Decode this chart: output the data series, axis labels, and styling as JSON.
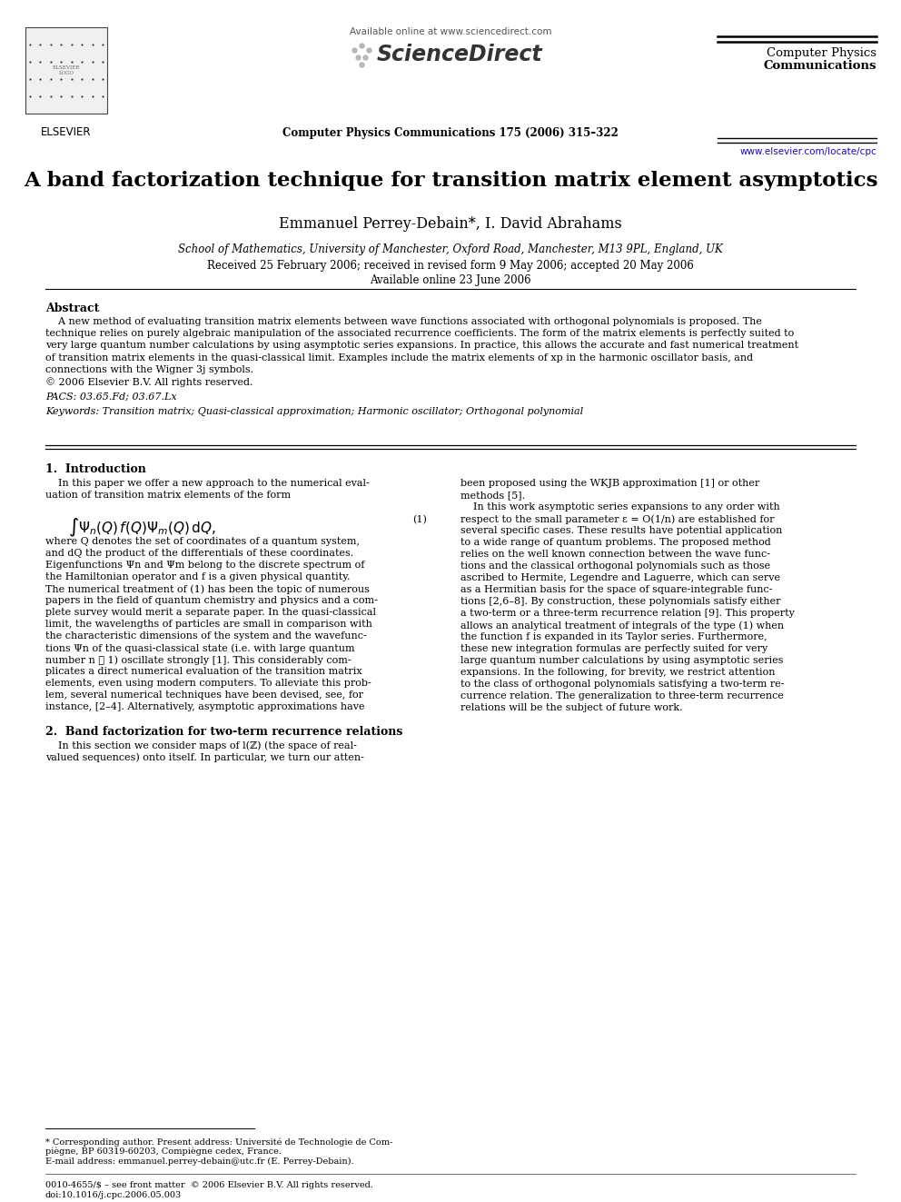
{
  "bg_color": "#ffffff",
  "title": "A band factorization technique for transition matrix element asymptotics",
  "authors": "Emmanuel Perrey-Debain*, I. David Abrahams",
  "affiliation": "School of Mathematics, University of Manchester, Oxford Road, Manchester, M13 9PL, England, UK",
  "received": "Received 25 February 2006; received in revised form 9 May 2006; accepted 20 May 2006",
  "available_online": "Available online 23 June 2006",
  "journal_header": "Computer Physics Communications 175 (2006) 315–322",
  "journal_name_line1": "Computer Physics",
  "journal_name_line2": "Communications",
  "sciencedirect_avail": "Available online at www.sciencedirect.com",
  "sciencedirect_logo": "ScienceDirect",
  "elsevier_text": "ELSEVIER",
  "url": "www.elsevier.com/locate/cpc",
  "abstract_title": "Abstract",
  "pacs": "PACS: 03.65.Fd; 03.67.Lx",
  "keywords": "Keywords: Transition matrix; Quasi-classical approximation; Harmonic oscillator; Orthogonal polynomial",
  "section1_title": "1.  Introduction",
  "section2_title": "2.  Band factorization for two-term recurrence relations",
  "integral_label": "(1)",
  "footnote_star1": "* Corresponding author. Present address: Université de Technologie de Com-",
  "footnote_star2": "piègne, BP 60319-60203, Compiègne cedex, France.",
  "footnote_star3": "E-mail address: emmanuel.perrey-debain@utc.fr (E. Perrey-Debain).",
  "footnote_bottom1": "0010-4655/$ – see front matter  © 2006 Elsevier B.V. All rights reserved.",
  "footnote_bottom2": "doi:10.1016/j.cpc.2006.05.003",
  "abstract_lines": [
    "    A new method of evaluating transition matrix elements between wave functions associated with orthogonal polynomials is proposed. The",
    "technique relies on purely algebraic manipulation of the associated recurrence coefficients. The form of the matrix elements is perfectly suited to",
    "very large quantum number calculations by using asymptotic series expansions. In practice, this allows the accurate and fast numerical treatment",
    "of transition matrix elements in the quasi-classical limit. Examples include the matrix elements of xp in the harmonic oscillator basis, and",
    "connections with the Wigner 3j symbols.",
    "© 2006 Elsevier B.V. All rights reserved."
  ],
  "left_col_intro": [
    "    In this paper we offer a new approach to the numerical eval-",
    "uation of transition matrix elements of the form"
  ],
  "left_col_body": [
    "where Q denotes the set of coordinates of a quantum system,",
    "and dQ the product of the differentials of these coordinates.",
    "Eigenfunctions Ψn and Ψm belong to the discrete spectrum of",
    "the Hamiltonian operator and f is a given physical quantity.",
    "The numerical treatment of (1) has been the topic of numerous",
    "papers in the field of quantum chemistry and physics and a com-",
    "plete survey would merit a separate paper. In the quasi-classical",
    "limit, the wavelengths of particles are small in comparison with",
    "the characteristic dimensions of the system and the wavefunc-",
    "tions Ψn of the quasi-classical state (i.e. with large quantum",
    "number n ≫ 1) oscillate strongly [1]. This considerably com-",
    "plicates a direct numerical evaluation of the transition matrix",
    "elements, even using modern computers. To alleviate this prob-",
    "lem, several numerical techniques have been devised, see, for",
    "instance, [2–4]. Alternatively, asymptotic approximations have"
  ],
  "right_col_body": [
    "been proposed using the WKJB approximation [1] or other",
    "methods [5].",
    "    In this work asymptotic series expansions to any order with",
    "respect to the small parameter ε = O(1/n) are established for",
    "several specific cases. These results have potential application",
    "to a wide range of quantum problems. The proposed method",
    "relies on the well known connection between the wave func-",
    "tions and the classical orthogonal polynomials such as those",
    "ascribed to Hermite, Legendre and Laguerre, which can serve",
    "as a Hermitian basis for the space of square-integrable func-",
    "tions [2,6–8]. By construction, these polynomials satisfy either",
    "a two-term or a three-term recurrence relation [9]. This property",
    "allows an analytical treatment of integrals of the type (1) when",
    "the function f is expanded in its Taylor series. Furthermore,",
    "these new integration formulas are perfectly suited for very",
    "large quantum number calculations by using asymptotic series",
    "expansions. In the following, for brevity, we restrict attention",
    "to the class of orthogonal polynomials satisfying a two-term re-",
    "currence relation. The generalization to three-term recurrence",
    "relations will be the subject of future work."
  ],
  "sec2_lines": [
    "    In this section we consider maps of l(ℤ) (the space of real-",
    "valued sequences) onto itself. In particular, we turn our atten-"
  ]
}
